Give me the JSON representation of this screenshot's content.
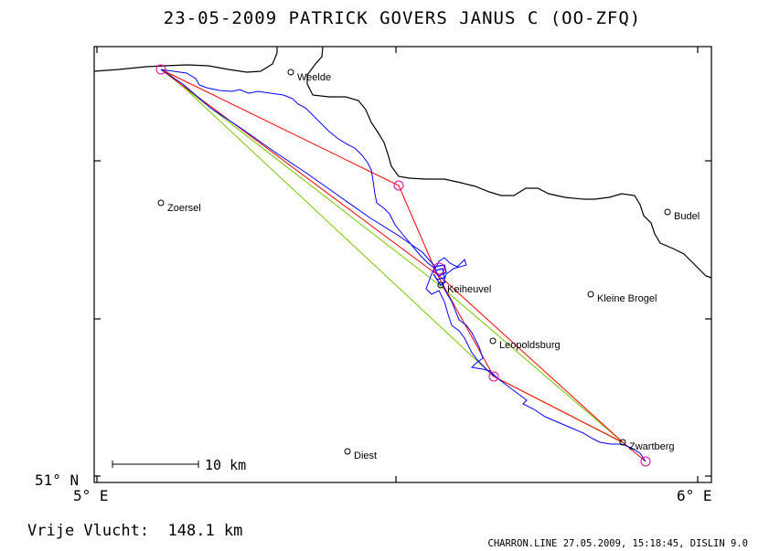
{
  "title": "23-05-2009   PATRICK GOVERS   JANUS C (OO-ZFQ)",
  "axes": {
    "x_left_label": "5° E",
    "x_right_label": "6° E",
    "y_bottom_label": "51° N"
  },
  "scale_bar": {
    "label": "10 km"
  },
  "distance_text": "Vrije Vlucht:  148.1 km",
  "footer_text": "CHARRON.LINE 27.05.2009, 15:18:45, DISLIN 9.0",
  "places": [
    {
      "id": "weelde",
      "name": "Weelde"
    },
    {
      "id": "zoersel",
      "name": "Zoersel"
    },
    {
      "id": "budel",
      "name": "Budel"
    },
    {
      "id": "keiheuvel",
      "name": "Keiheuvel"
    },
    {
      "id": "kleine-brogel",
      "name": "Kleine Brogel"
    },
    {
      "id": "leopoldsburg",
      "name": "Leopoldsburg"
    },
    {
      "id": "diest",
      "name": "Diest"
    },
    {
      "id": "zwartberg",
      "name": "Zwartberg"
    }
  ],
  "colors": {
    "track": "#0000ff",
    "task_line": "#ff0000",
    "free_flight_line": "#78c800",
    "turnpoint_marker": "#e0009a",
    "border": "#000000"
  }
}
